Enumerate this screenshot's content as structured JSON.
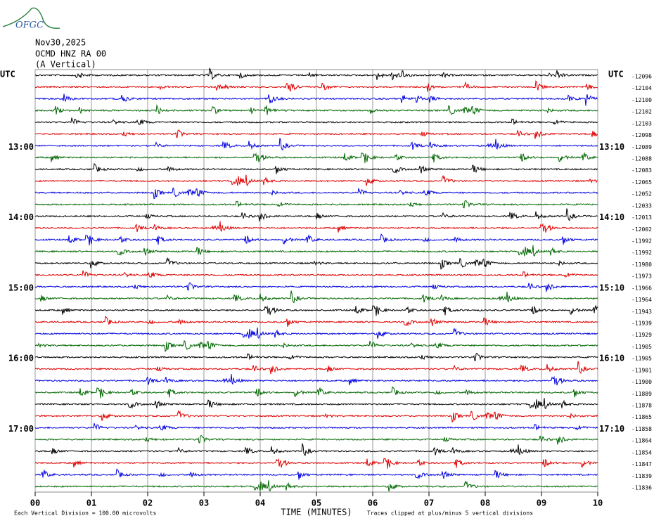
{
  "header": {
    "logo": "OFGC",
    "date": "Nov30,2025",
    "station": "OCMD HNZ RA 00",
    "component": "(A Vertical)"
  },
  "utc_left": "UTC",
  "utc_right": "UTC",
  "left_times": [
    "13:00",
    "14:00",
    "15:00",
    "16:00",
    "17:00"
  ],
  "right_times": [
    "13:10",
    "14:10",
    "15:10",
    "16:10",
    "17:10"
  ],
  "trace_offsets": [
    "-12096",
    "-12104",
    "-12100",
    "-12102",
    "-12103",
    "-12098",
    "-12089",
    "-12088",
    "-12083",
    "-12065",
    "-12052",
    "-12033",
    "-12013",
    "-12002",
    "-11992",
    "-11992",
    "-11980",
    "-11973",
    "-11966",
    "-11964",
    "-11943",
    "-11939",
    "-11929",
    "-11905",
    "-11905",
    "-11901",
    "-11900",
    "-11889",
    "-11878",
    "-11865",
    "-11858",
    "-11864",
    "-11854",
    "-11847",
    "-11839",
    "-11836"
  ],
  "trace_colors": [
    "#000000",
    "#e00000",
    "#0000e0",
    "#006600"
  ],
  "x_axis": {
    "labels": [
      "00",
      "01",
      "02",
      "03",
      "04",
      "05",
      "06",
      "07",
      "08",
      "09",
      "10"
    ],
    "title": "TIME (MINUTES)"
  },
  "footer": {
    "scale_note": "Each Vertical Division =  100.00 microvolts",
    "clip_note": "Traces clipped at plus/minus 5 vertical divisions"
  }
}
